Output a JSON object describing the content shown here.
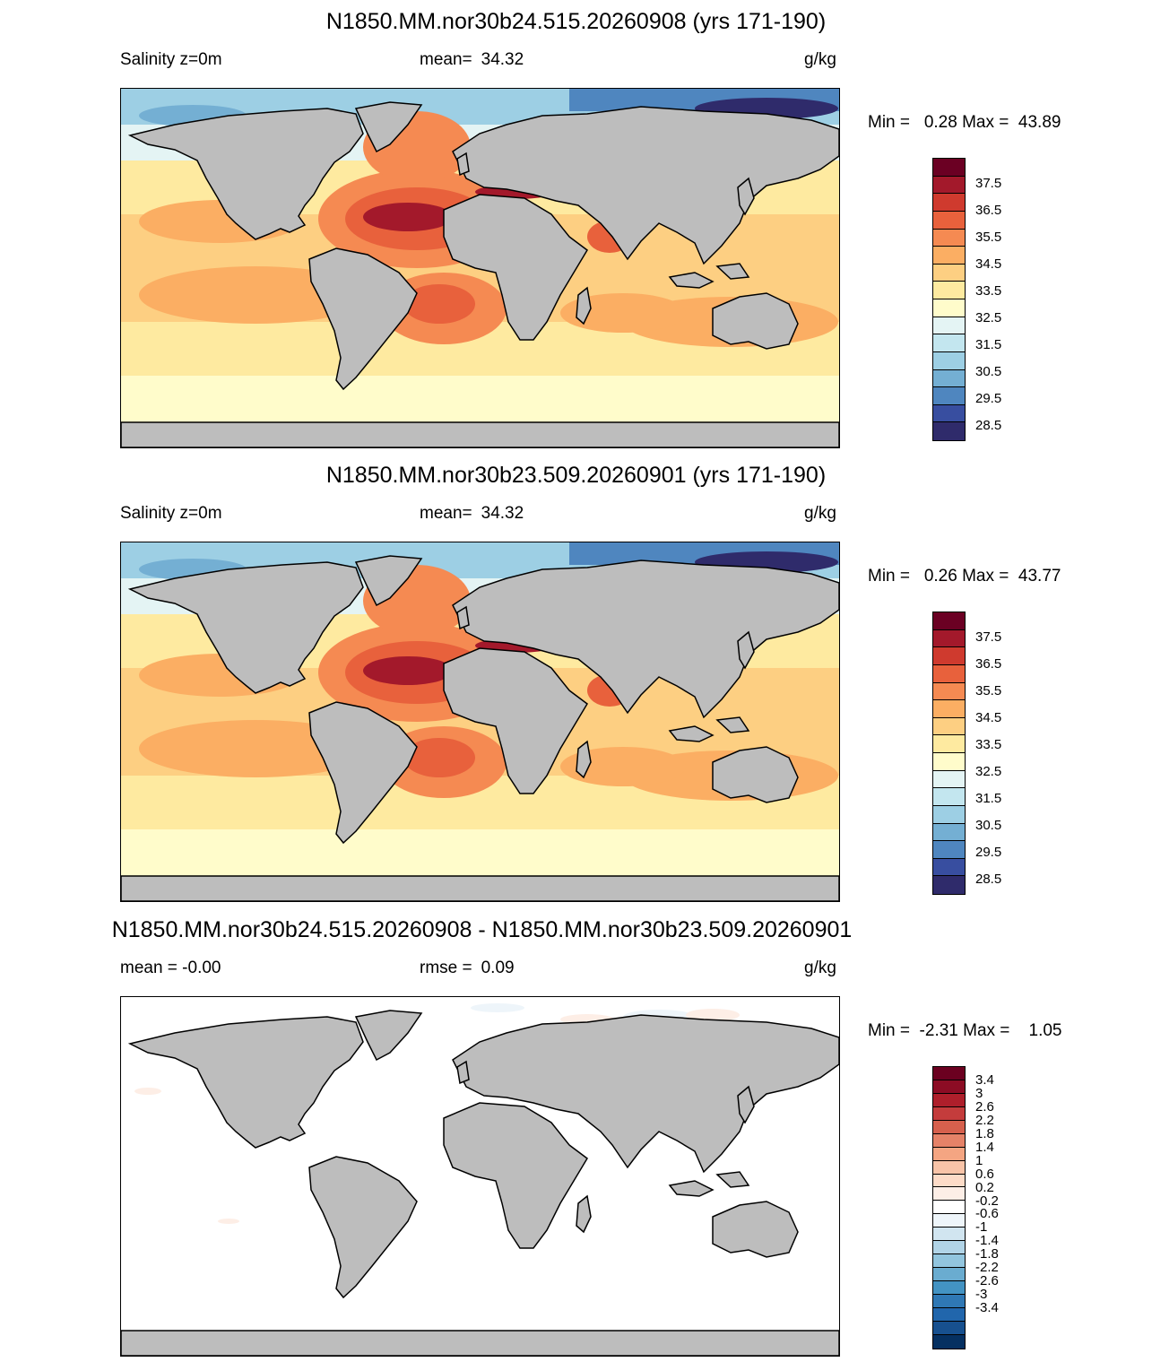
{
  "units": "g/kg",
  "panels": [
    {
      "title": "N1850.MM.nor30b24.515.20260908 (yrs 171-190)",
      "left_label": "Salinity z=0m",
      "mid_label": "mean=",
      "mid_value": "34.32",
      "right_label": "g/kg",
      "minmax": "Min =   0.28 Max =  43.89",
      "kind": "salinity"
    },
    {
      "title": "N1850.MM.nor30b23.509.20260901 (yrs 171-190)",
      "left_label": "Salinity z=0m",
      "mid_label": "mean=",
      "mid_value": "34.32",
      "right_label": "g/kg",
      "minmax": "Min =   0.26 Max =  43.77",
      "kind": "salinity"
    },
    {
      "title": "N1850.MM.nor30b24.515.20260908 - N1850.MM.nor30b23.509.20260901",
      "left_label": "mean =  -0.00",
      "mid_label": "rmse =",
      "mid_value": "0.09",
      "right_label": "g/kg",
      "minmax": "Min =  -2.31 Max =    1.05",
      "kind": "difference"
    }
  ],
  "colorbars": {
    "salinity": {
      "colors": [
        "#6b0023",
        "#a3192b",
        "#cf3a2e",
        "#e8613c",
        "#f58a52",
        "#fbae63",
        "#fdcf82",
        "#feeaa0",
        "#fffccb",
        "#e4f4f4",
        "#c3e6ef",
        "#9dcfe4",
        "#74afd3",
        "#4f86bf",
        "#384ea0",
        "#2f2b6b"
      ],
      "labels": [
        "37.5",
        "36.5",
        "35.5",
        "34.5",
        "33.5",
        "32.5",
        "31.5",
        "30.5",
        "29.5",
        "28.5"
      ]
    },
    "difference": {
      "colors": [
        "#6b0020",
        "#8c0c24",
        "#ae1f2b",
        "#c43c3c",
        "#d6604d",
        "#e58268",
        "#f4a582",
        "#f9c4a8",
        "#fddbc7",
        "#fdeee6",
        "#ffffff",
        "#eef5fa",
        "#d1e5f0",
        "#b1d4e7",
        "#92c5de",
        "#6aacd0",
        "#4393c3",
        "#2f78b5",
        "#2166ac",
        "#17508f",
        "#053061"
      ],
      "labels": [
        "3.4",
        "3",
        "2.6",
        "2.2",
        "1.8",
        "1.4",
        "1",
        "0.6",
        "0.2",
        "-0.2",
        "-0.6",
        "-1",
        "-1.4",
        "-1.8",
        "-2.2",
        "-2.6",
        "-3",
        "-3.4"
      ]
    }
  },
  "map_colors": {
    "land": "#bdbdbd",
    "coast": "#000000"
  }
}
